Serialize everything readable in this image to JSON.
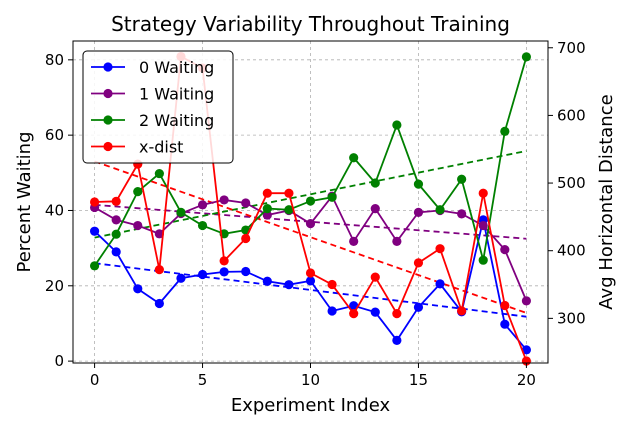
{
  "chart_data": {
    "type": "line",
    "title": "Strategy Variability Throughout Training",
    "xlabel": "Experiment Index",
    "ylabel": "Percent Waiting",
    "y2label": "Avg Horizontal Distance",
    "xlim": [
      -1,
      21
    ],
    "ylim": [
      -0.5,
      85
    ],
    "y2lim": [
      234,
      710
    ],
    "xticks": [
      0,
      5,
      10,
      15,
      20
    ],
    "yticks": [
      0,
      20,
      40,
      60,
      80
    ],
    "y2ticks": [
      300,
      400,
      500,
      600,
      700
    ],
    "grid": true,
    "legend": "top-left",
    "x": [
      0,
      1,
      2,
      3,
      4,
      5,
      6,
      7,
      8,
      9,
      10,
      11,
      12,
      13,
      14,
      15,
      16,
      17,
      18,
      19,
      20
    ],
    "series": [
      {
        "name": "0 Waiting",
        "color": "#0000ff",
        "axis": "left",
        "values": [
          34.5,
          29,
          19.2,
          15.3,
          22,
          23,
          23.7,
          23.8,
          21.2,
          20.3,
          21.3,
          13.3,
          14.7,
          13,
          5.5,
          14.3,
          20.5,
          13.1,
          37.5,
          9.8,
          3
        ],
        "trend": [
          26.0,
          11.8
        ]
      },
      {
        "name": "1 Waiting",
        "color": "#800080",
        "axis": "left",
        "values": [
          40.8,
          37.5,
          36,
          33.8,
          39.2,
          41.5,
          42.8,
          42,
          38.8,
          40,
          36.5,
          43.8,
          31.8,
          40.5,
          31.8,
          39.5,
          40,
          39.1,
          36,
          29.6,
          16
        ],
        "trend": [
          41.5,
          32.5
        ]
      },
      {
        "name": "2 Waiting",
        "color": "#008000",
        "axis": "left",
        "values": [
          25.3,
          33.7,
          45,
          49.8,
          39.5,
          36,
          33.8,
          34.8,
          40.5,
          40.2,
          42.5,
          43.5,
          54,
          47.3,
          62.7,
          47,
          40.2,
          48.3,
          26.8,
          61,
          80.8
        ],
        "trend": [
          32.8,
          55.8
        ]
      },
      {
        "name": "x-dist",
        "color": "#ff0000",
        "axis": "right",
        "values": [
          472,
          473,
          528,
          372,
          687,
          670,
          385,
          418,
          485,
          485,
          367,
          350,
          307,
          361,
          307,
          382,
          403,
          311,
          485,
          319,
          237
        ],
        "trend": [
          532,
          308
        ]
      }
    ]
  }
}
